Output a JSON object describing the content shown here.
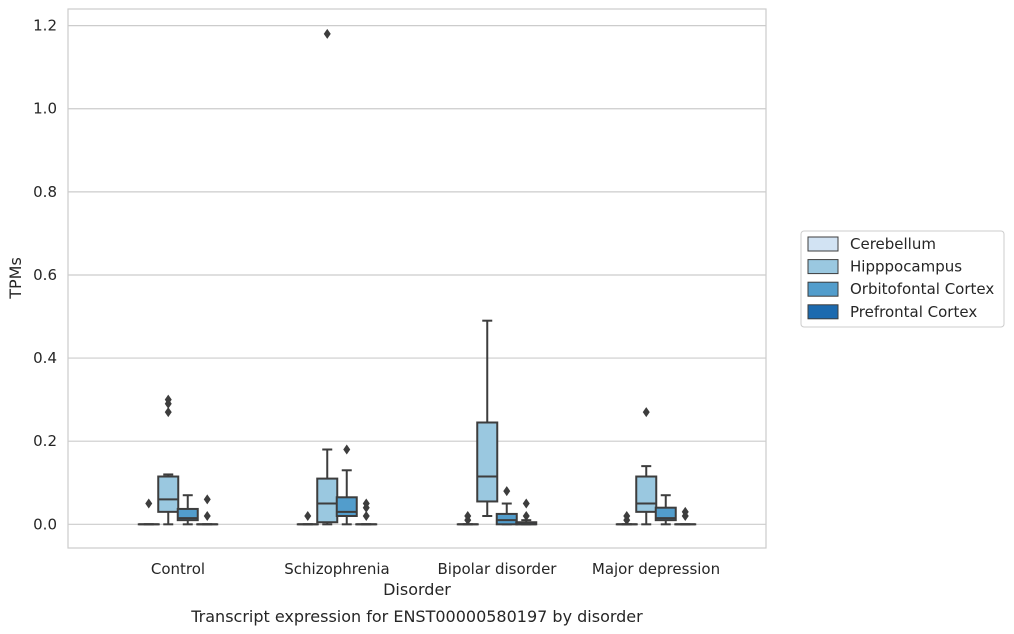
{
  "chart_data": {
    "type": "box",
    "title": "",
    "caption": "Transcript expression for ENST00000580197 by disorder",
    "xlabel": "Disorder",
    "ylabel": "TPMs",
    "ylim": [
      -0.057,
      1.24
    ],
    "yticks": [
      "0.0",
      "0.2",
      "0.4",
      "0.6",
      "0.8",
      "1.0",
      "1.2"
    ],
    "categories": [
      "Control",
      "Schizophrenia",
      "Bipolar disorder",
      "Major depression"
    ],
    "grid": "horizontal",
    "legend_position": "right",
    "series": [
      {
        "name": "Cerebellum",
        "color": "#d2e3f3",
        "boxes": [
          {
            "q1": 0,
            "median": 0,
            "q3": 0,
            "whisker_low": 0,
            "whisker_high": 0,
            "outliers": [
              0.05
            ]
          },
          {
            "q1": 0,
            "median": 0,
            "q3": 0,
            "whisker_low": 0,
            "whisker_high": 0,
            "outliers": [
              0.02
            ]
          },
          {
            "q1": 0,
            "median": 0,
            "q3": 0,
            "whisker_low": 0,
            "whisker_high": 0,
            "outliers": [
              0.02,
              0.01
            ]
          },
          {
            "q1": 0,
            "median": 0,
            "q3": 0,
            "whisker_low": 0,
            "whisker_high": 0,
            "outliers": [
              0.02,
              0.01
            ]
          }
        ]
      },
      {
        "name": "Hipppocampus",
        "color": "#9ac8e0",
        "boxes": [
          {
            "q1": 0.03,
            "median": 0.06,
            "q3": 0.115,
            "whisker_low": 0,
            "whisker_high": 0.12,
            "outliers": [
              0.27,
              0.29,
              0.3
            ]
          },
          {
            "q1": 0.005,
            "median": 0.05,
            "q3": 0.11,
            "whisker_low": 0,
            "whisker_high": 0.18,
            "outliers": [
              1.18
            ]
          },
          {
            "q1": 0.055,
            "median": 0.115,
            "q3": 0.245,
            "whisker_low": 0.02,
            "whisker_high": 0.49,
            "outliers": []
          },
          {
            "q1": 0.03,
            "median": 0.05,
            "q3": 0.115,
            "whisker_low": 0,
            "whisker_high": 0.14,
            "outliers": [
              0.27
            ]
          }
        ]
      },
      {
        "name": "Orbitofontal Cortex",
        "color": "#529dcc",
        "boxes": [
          {
            "q1": 0.01,
            "median": 0.015,
            "q3": 0.037,
            "whisker_low": 0,
            "whisker_high": 0.07,
            "outliers": []
          },
          {
            "q1": 0.02,
            "median": 0.03,
            "q3": 0.065,
            "whisker_low": 0,
            "whisker_high": 0.13,
            "outliers": [
              0.18
            ]
          },
          {
            "q1": 0,
            "median": 0.01,
            "q3": 0.025,
            "whisker_low": 0,
            "whisker_high": 0.05,
            "outliers": [
              0.08
            ]
          },
          {
            "q1": 0.01,
            "median": 0.015,
            "q3": 0.04,
            "whisker_low": 0,
            "whisker_high": 0.07,
            "outliers": []
          }
        ]
      },
      {
        "name": "Prefrontal Cortex",
        "color": "#1c6aaf",
        "boxes": [
          {
            "q1": 0,
            "median": 0,
            "q3": 0,
            "whisker_low": 0,
            "whisker_high": 0,
            "outliers": [
              0.02,
              0.06
            ]
          },
          {
            "q1": 0,
            "median": 0,
            "q3": 0,
            "whisker_low": 0,
            "whisker_high": 0,
            "outliers": [
              0.02,
              0.04,
              0.05
            ]
          },
          {
            "q1": 0,
            "median": 0,
            "q3": 0.005,
            "whisker_low": 0,
            "whisker_high": 0.01,
            "outliers": [
              0.02,
              0.05
            ]
          },
          {
            "q1": 0,
            "median": 0,
            "q3": 0,
            "whisker_low": 0,
            "whisker_high": 0,
            "outliers": [
              0.02,
              0.03
            ]
          }
        ]
      }
    ]
  }
}
